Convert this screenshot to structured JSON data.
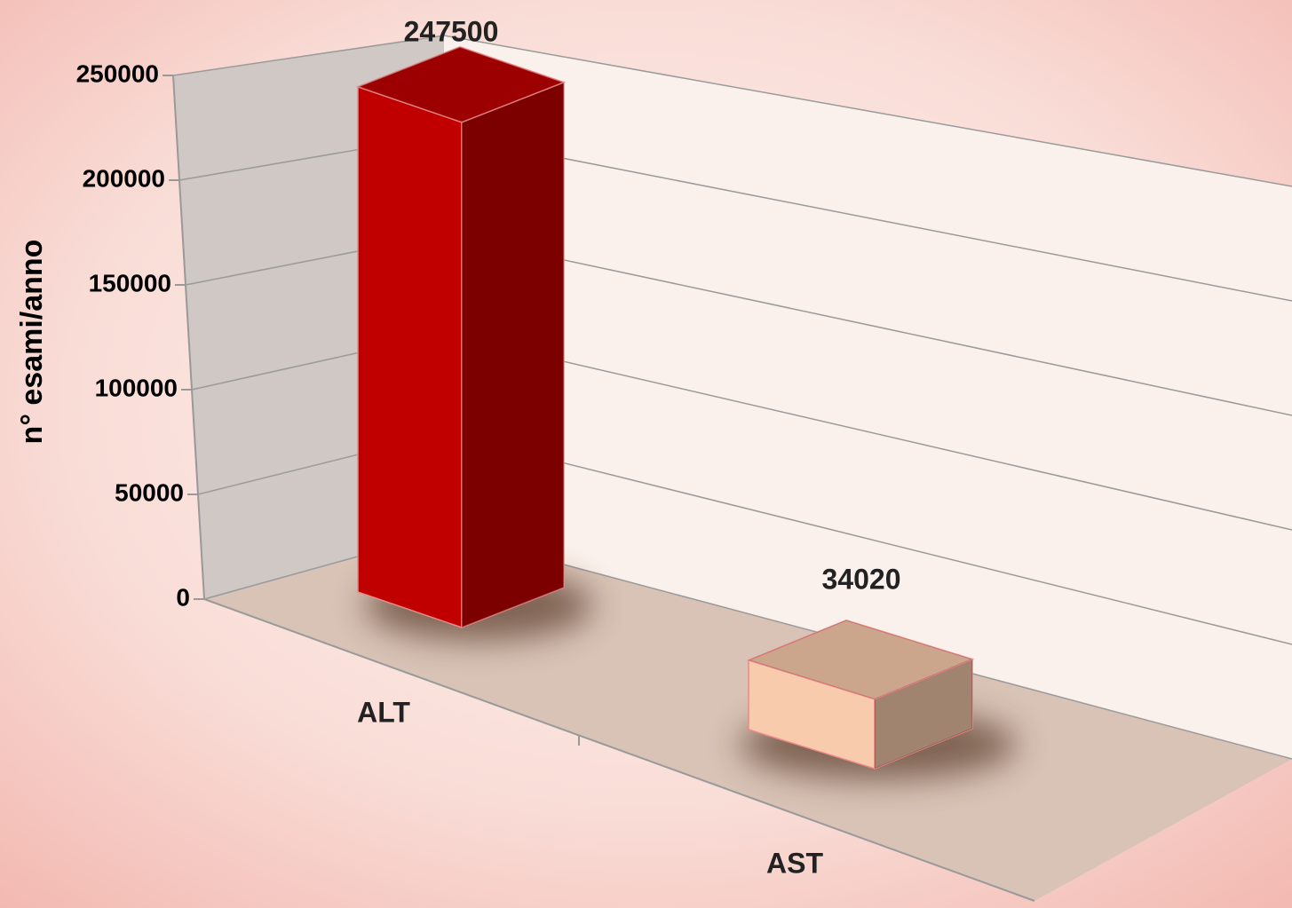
{
  "chart_data": {
    "type": "bar3d",
    "y_label": "n° esami/anno",
    "categories": [
      "ALT",
      "AST"
    ],
    "series": [
      {
        "name": null,
        "colors": [
          "#c00000",
          "#f8cbad"
        ],
        "values": [
          247500,
          34020
        ]
      }
    ],
    "ylim": [
      0,
      250000
    ],
    "yticks": [
      0,
      50000,
      100000,
      150000,
      200000,
      250000
    ],
    "grid": true
  }
}
